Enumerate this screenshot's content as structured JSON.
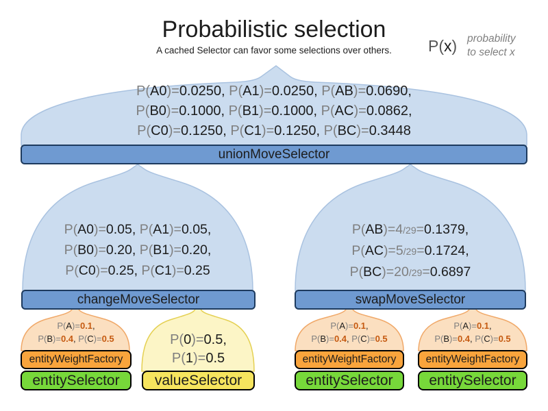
{
  "title": "Probabilistic selection",
  "subtitle": "A cached Selector can favor some selections over others.",
  "legend": {
    "formula": [
      {
        "t": "P(",
        "c": "g2"
      },
      {
        "t": "x",
        "c": "k"
      },
      {
        "t": ")",
        "c": "g2"
      }
    ],
    "note_line1": "probability",
    "note_line2": "to select x"
  },
  "colors": {
    "light_blue": "#cbdcef",
    "light_blue_border": "#a9c2e0",
    "blue_bar": "#6f9ad1",
    "blue_bar_border": "#1d3a5e",
    "orange_arch": "#fbdfc0",
    "orange_arch_border": "#f0a868",
    "orange_bar": "#f9a43c",
    "yellow_arch": "#fcf5c6",
    "yellow_arch_border": "#e4d052",
    "yellow_bar": "#f6e45e",
    "green_bar": "#77d83a",
    "bar_border_dark": "#000000",
    "gray_text": "#7f7f7f",
    "dark_text": "#1c1c1c",
    "orange_text": "#c55a11"
  },
  "union_funnel": {
    "bar_label": "unionMoveSelector",
    "lines": [
      [
        {
          "t": "P(",
          "c": "g"
        },
        {
          "t": "A0",
          "c": "k"
        },
        {
          "t": ")=",
          "c": "g"
        },
        {
          "t": "0.0250, ",
          "c": "k"
        },
        {
          "t": "P(",
          "c": "g"
        },
        {
          "t": "A1",
          "c": "k"
        },
        {
          "t": ")=",
          "c": "g"
        },
        {
          "t": "0.0250, ",
          "c": "k"
        },
        {
          "t": "P(",
          "c": "g"
        },
        {
          "t": "AB",
          "c": "k"
        },
        {
          "t": ")=",
          "c": "g"
        },
        {
          "t": "0.0690,",
          "c": "k"
        }
      ],
      [
        {
          "t": "P(",
          "c": "g"
        },
        {
          "t": "B0",
          "c": "k"
        },
        {
          "t": ")=",
          "c": "g"
        },
        {
          "t": "0.1000, ",
          "c": "k"
        },
        {
          "t": "P(",
          "c": "g"
        },
        {
          "t": "B1",
          "c": "k"
        },
        {
          "t": ")=",
          "c": "g"
        },
        {
          "t": "0.1000, ",
          "c": "k"
        },
        {
          "t": "P(",
          "c": "g"
        },
        {
          "t": "AC",
          "c": "k"
        },
        {
          "t": ")=",
          "c": "g"
        },
        {
          "t": "0.0862,",
          "c": "k"
        }
      ],
      [
        {
          "t": "P(",
          "c": "g"
        },
        {
          "t": "C0",
          "c": "k"
        },
        {
          "t": ")=",
          "c": "g"
        },
        {
          "t": "0.1250, ",
          "c": "k"
        },
        {
          "t": "P(",
          "c": "g"
        },
        {
          "t": "C1",
          "c": "k"
        },
        {
          "t": ")=",
          "c": "g"
        },
        {
          "t": "0.1250, ",
          "c": "k"
        },
        {
          "t": "P(",
          "c": "g"
        },
        {
          "t": "BC",
          "c": "k"
        },
        {
          "t": ")=",
          "c": "g"
        },
        {
          "t": "0.3448",
          "c": "k"
        }
      ]
    ]
  },
  "change_funnel": {
    "bar_label": "changeMoveSelector",
    "lines": [
      [
        {
          "t": "P(",
          "c": "g"
        },
        {
          "t": "A0",
          "c": "k"
        },
        {
          "t": ")=",
          "c": "g"
        },
        {
          "t": "0.05, ",
          "c": "k"
        },
        {
          "t": "P(",
          "c": "g"
        },
        {
          "t": "A1",
          "c": "k"
        },
        {
          "t": ")=",
          "c": "g"
        },
        {
          "t": "0.05,",
          "c": "k"
        }
      ],
      [
        {
          "t": "P(",
          "c": "g"
        },
        {
          "t": "B0",
          "c": "k"
        },
        {
          "t": ")=",
          "c": "g"
        },
        {
          "t": "0.20, ",
          "c": "k"
        },
        {
          "t": "P(",
          "c": "g"
        },
        {
          "t": "B1",
          "c": "k"
        },
        {
          "t": ")=",
          "c": "g"
        },
        {
          "t": "0.20,",
          "c": "k"
        }
      ],
      [
        {
          "t": "P(",
          "c": "g"
        },
        {
          "t": "C0",
          "c": "k"
        },
        {
          "t": ")=",
          "c": "g"
        },
        {
          "t": "0.25, ",
          "c": "k"
        },
        {
          "t": "P(",
          "c": "g"
        },
        {
          "t": "C1",
          "c": "k"
        },
        {
          "t": ")=",
          "c": "g"
        },
        {
          "t": "0.25",
          "c": "k"
        }
      ]
    ]
  },
  "swap_funnel": {
    "bar_label": "swapMoveSelector",
    "lines": [
      [
        {
          "t": "P(",
          "c": "g"
        },
        {
          "t": "AB",
          "c": "k"
        },
        {
          "t": ")=",
          "c": "g"
        },
        {
          "t": "4",
          "c": "g"
        },
        {
          "t": "/29",
          "c": "f"
        },
        {
          "t": "=",
          "c": "g"
        },
        {
          "t": "0.1379,",
          "c": "k"
        }
      ],
      [
        {
          "t": "P(",
          "c": "g"
        },
        {
          "t": "AC",
          "c": "k"
        },
        {
          "t": ")=",
          "c": "g"
        },
        {
          "t": "5",
          "c": "g"
        },
        {
          "t": "/29",
          "c": "f"
        },
        {
          "t": "=",
          "c": "g"
        },
        {
          "t": "0.1724,",
          "c": "k"
        }
      ],
      [
        {
          "t": "P(",
          "c": "g"
        },
        {
          "t": "BC",
          "c": "k"
        },
        {
          "t": ")=",
          "c": "g"
        },
        {
          "t": "20",
          "c": "g"
        },
        {
          "t": "/29",
          "c": "f"
        },
        {
          "t": "=",
          "c": "g"
        },
        {
          "t": "0.6897",
          "c": "k"
        }
      ]
    ]
  },
  "entity_weight_funnel": {
    "bar_label": "entityWeightFactory",
    "lines": [
      [
        {
          "t": "P(",
          "c": "g"
        },
        {
          "t": "A",
          "c": "k"
        },
        {
          "t": ")=",
          "c": "g"
        },
        {
          "t": "0.1",
          "c": "o"
        },
        {
          "t": ",",
          "c": "k"
        }
      ],
      [
        {
          "t": "P(",
          "c": "g"
        },
        {
          "t": "B",
          "c": "k"
        },
        {
          "t": ")=",
          "c": "g"
        },
        {
          "t": "0.4",
          "c": "o"
        },
        {
          "t": ", ",
          "c": "k"
        },
        {
          "t": "P(",
          "c": "g"
        },
        {
          "t": "C",
          "c": "k"
        },
        {
          "t": ")=",
          "c": "g"
        },
        {
          "t": "0.5",
          "c": "o"
        }
      ]
    ]
  },
  "value_funnel": {
    "bar_label": "valueSelector",
    "lines": [
      [
        {
          "t": "P(",
          "c": "g"
        },
        {
          "t": "0",
          "c": "k"
        },
        {
          "t": ")=",
          "c": "g"
        },
        {
          "t": "0.5,",
          "c": "k"
        }
      ],
      [
        {
          "t": "P(",
          "c": "g"
        },
        {
          "t": "1",
          "c": "k"
        },
        {
          "t": ")=",
          "c": "g"
        },
        {
          "t": "0.5",
          "c": "k"
        }
      ]
    ]
  },
  "entity_selector": {
    "bar_label": "entitySelector"
  }
}
